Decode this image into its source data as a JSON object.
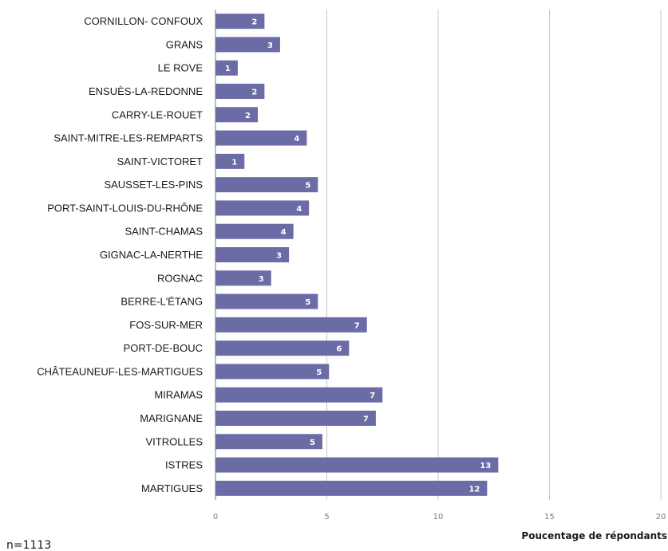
{
  "chart_data": {
    "type": "bar",
    "orientation": "horizontal",
    "categories": [
      "CORNILLON- CONFOUX",
      "GRANS",
      "LE ROVE",
      "ENSUÈS-LA-REDONNE",
      "CARRY-LE-ROUET",
      "SAINT-MITRE-LES-REMPARTS",
      "SAINT-VICTORET",
      "SAUSSET-LES-PINS",
      "PORT-SAINT-LOUIS-DU-RHÔNE",
      "SAINT-CHAMAS",
      "GIGNAC-LA-NERTHE",
      "ROGNAC",
      "BERRE-L'ÉTANG",
      "FOS-SUR-MER",
      "PORT-DE-BOUC",
      "CHÂTEAUNEUF-LES-MARTIGUES",
      "MIRAMAS",
      "MARIGNANE",
      "VITROLLES",
      "ISTRES",
      "MARTIGUES"
    ],
    "values": [
      2.2,
      2.9,
      1.0,
      2.2,
      1.9,
      4.1,
      1.3,
      4.6,
      4.2,
      3.5,
      3.3,
      2.5,
      4.6,
      6.8,
      6.0,
      5.1,
      7.5,
      7.2,
      4.8,
      12.7,
      12.2
    ],
    "data_labels": [
      "2",
      "3",
      "1",
      "2",
      "2",
      "4",
      "1",
      "5",
      "4",
      "4",
      "3",
      "3",
      "5",
      "7",
      "6",
      "5",
      "7",
      "7",
      "5",
      "13",
      "12"
    ],
    "xlabel": "Poucentage de répondants",
    "xlim": [
      0,
      20
    ],
    "xticks": [
      "0",
      "5",
      "10",
      "15",
      "20"
    ],
    "grid": true,
    "bar_color": "#6b6ba6",
    "grid_color": "#c8c8c8",
    "note": "n=1113"
  }
}
